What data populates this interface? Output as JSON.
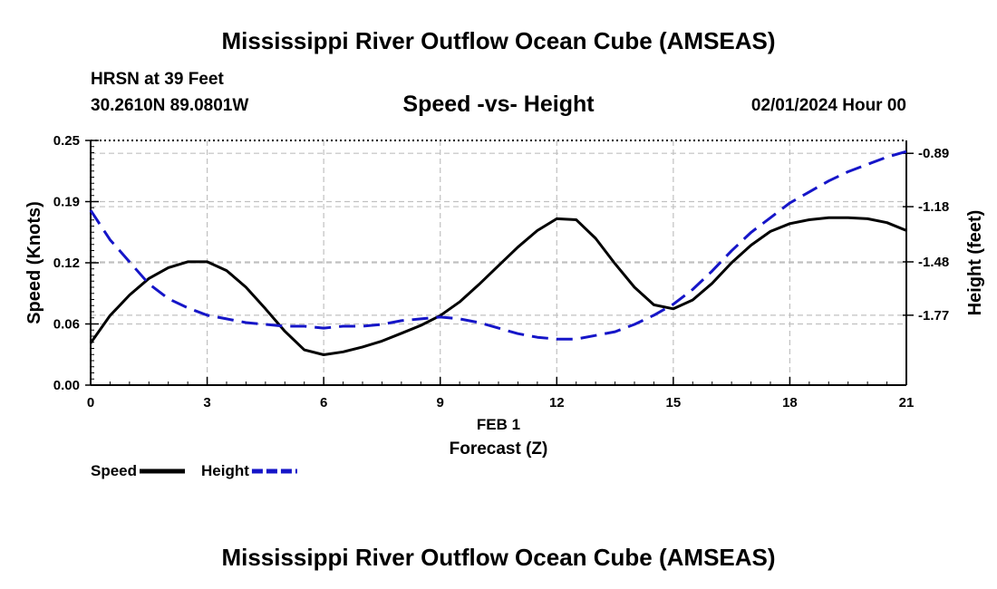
{
  "header": {
    "title": "Mississippi River Outflow Ocean Cube (AMSEAS)",
    "station": "HRSN at 39 Feet",
    "coordinates": "30.2610N  89.0801W",
    "chart_title": "Speed -vs- Height",
    "datetime": "02/01/2024 Hour 00"
  },
  "footer": {
    "title": "Mississippi River Outflow Ocean Cube (AMSEAS)"
  },
  "chart_data": {
    "type": "line",
    "title": "Speed -vs- Height",
    "xlabel": "Forecast (Z)",
    "x_date_label": "FEB 1",
    "ylabel": "Speed (Knots)",
    "y2label": "Height (feet)",
    "xlim": [
      0,
      21
    ],
    "ylim": [
      0,
      0.25
    ],
    "y2lim": [
      -2.15,
      -0.82
    ],
    "x_ticks": [
      0,
      3,
      6,
      9,
      12,
      15,
      18,
      21
    ],
    "x_tick_labels": [
      "0",
      "3",
      "6",
      "9",
      "12",
      "15",
      "18",
      "21"
    ],
    "y_ticks": [
      0,
      0.0625,
      0.125,
      0.1875,
      0.25
    ],
    "y_tick_labels": [
      "0.00",
      "0.06",
      "0.12",
      "0.19",
      "0.25"
    ],
    "y2_ticks": [
      -0.89,
      -1.18,
      -1.48,
      -1.77
    ],
    "y2_tick_labels": [
      "-0.89",
      "-1.18",
      "-1.48",
      "-1.77"
    ],
    "grid": true,
    "series": [
      {
        "name": "Speed",
        "axis": "left",
        "color": "#000000",
        "style": "solid",
        "x": [
          0,
          0.5,
          1,
          1.5,
          2,
          2.5,
          3,
          3.5,
          4,
          4.5,
          5,
          5.5,
          6,
          6.5,
          7,
          7.5,
          8,
          8.5,
          9,
          9.5,
          10,
          10.5,
          11,
          11.5,
          12,
          12.5,
          13,
          13.5,
          14,
          14.5,
          15,
          15.5,
          16,
          16.5,
          17,
          17.5,
          18,
          18.5,
          19,
          19.5,
          20,
          20.5,
          21
        ],
        "values": [
          0.043,
          0.071,
          0.092,
          0.109,
          0.12,
          0.126,
          0.126,
          0.117,
          0.1,
          0.078,
          0.055,
          0.036,
          0.031,
          0.034,
          0.039,
          0.045,
          0.053,
          0.061,
          0.071,
          0.085,
          0.103,
          0.122,
          0.141,
          0.158,
          0.17,
          0.169,
          0.15,
          0.124,
          0.1,
          0.082,
          0.078,
          0.087,
          0.104,
          0.125,
          0.143,
          0.157,
          0.165,
          0.169,
          0.171,
          0.171,
          0.17,
          0.166,
          0.158
        ]
      },
      {
        "name": "Height",
        "axis": "right",
        "color": "#1515c8",
        "style": "dashed",
        "x": [
          0,
          0.5,
          1,
          1.5,
          2,
          2.5,
          3,
          3.5,
          4,
          4.5,
          5,
          5.5,
          6,
          6.5,
          7,
          7.5,
          8,
          8.5,
          9,
          9.5,
          10,
          10.5,
          11,
          11.5,
          12,
          12.5,
          13,
          13.5,
          14,
          14.5,
          15,
          15.5,
          16,
          16.5,
          17,
          17.5,
          18,
          18.5,
          19,
          19.5,
          20,
          20.5,
          21
        ],
        "values": [
          -1.2,
          -1.36,
          -1.48,
          -1.6,
          -1.68,
          -1.73,
          -1.77,
          -1.79,
          -1.81,
          -1.82,
          -1.83,
          -1.83,
          -1.84,
          -1.83,
          -1.83,
          -1.82,
          -1.8,
          -1.79,
          -1.78,
          -1.79,
          -1.81,
          -1.84,
          -1.87,
          -1.89,
          -1.9,
          -1.9,
          -1.88,
          -1.86,
          -1.82,
          -1.77,
          -1.71,
          -1.63,
          -1.53,
          -1.42,
          -1.32,
          -1.24,
          -1.16,
          -1.1,
          -1.04,
          -0.99,
          -0.95,
          -0.91,
          -0.88
        ]
      }
    ],
    "legend": {
      "position": "bottom-left",
      "entries": [
        {
          "label": "Speed",
          "color": "#000000",
          "style": "solid"
        },
        {
          "label": "Height",
          "color": "#1515c8",
          "style": "dashed"
        }
      ]
    }
  }
}
